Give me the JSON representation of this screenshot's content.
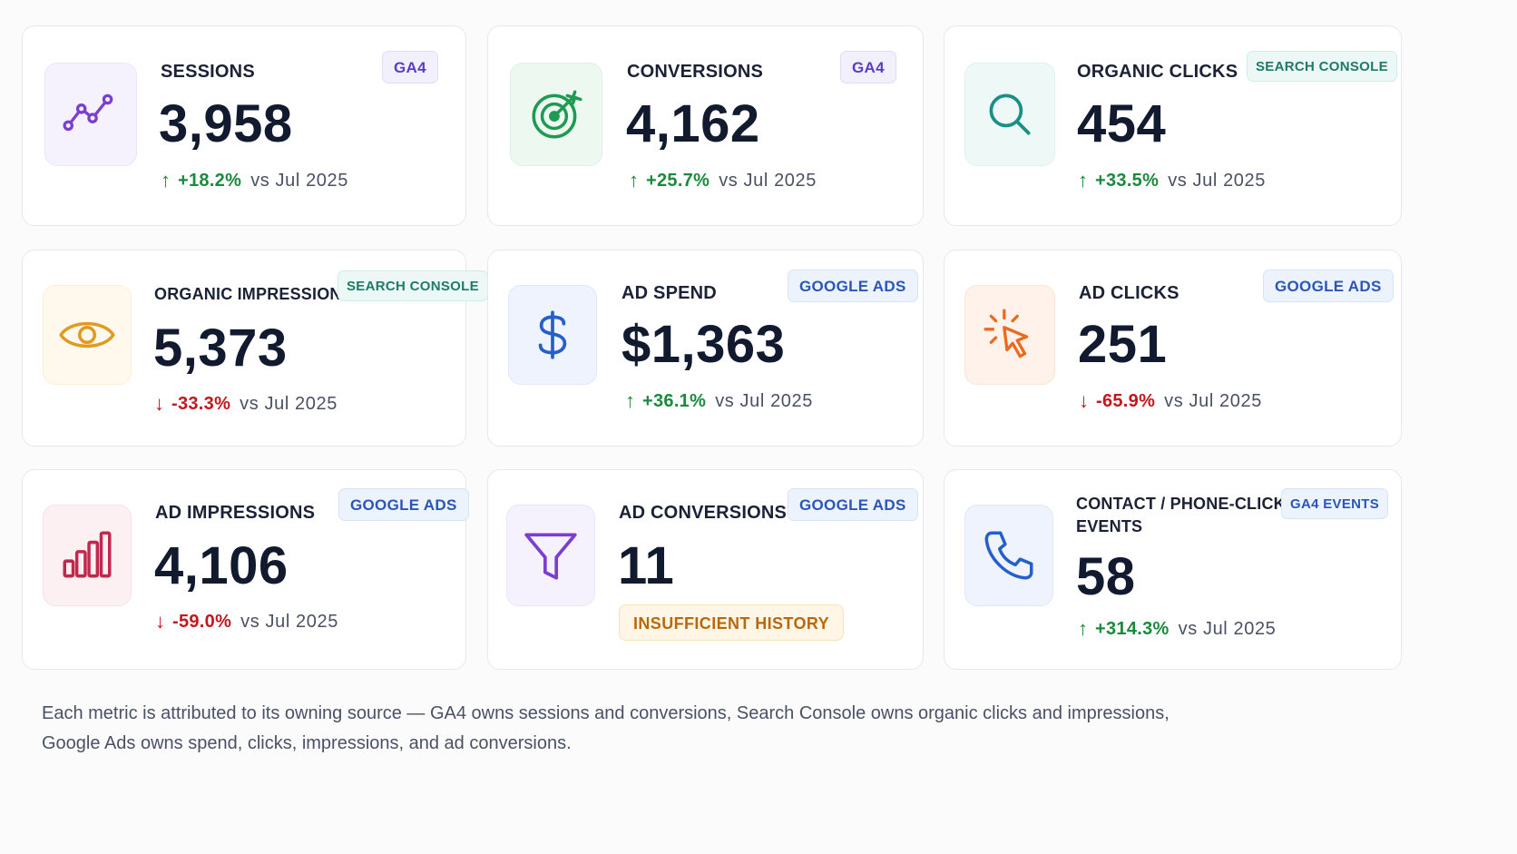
{
  "colors": {
    "up": "#1a8a3c",
    "down": "#c4161c",
    "ga4_badge": "#5b3cc4",
    "search_console_badge": "#1f7a6a",
    "google_ads_badge": "#2b55b8"
  },
  "cards": [
    {
      "label": "SESSIONS",
      "source": "GA4",
      "value": "3,958",
      "icon": "trend-line-icon",
      "arrow": "↑",
      "change": "+18.2%",
      "compare": "vs  Jul  2025"
    },
    {
      "label": "CONVERSIONS",
      "source": "GA4",
      "value": "4,162",
      "icon": "target-icon",
      "arrow": "↑",
      "change": "+25.7%",
      "compare": "vs  Jul  2025"
    },
    {
      "label": "ORGANIC CLICKS",
      "source": "SEARCH CONSOLE",
      "value": "454",
      "icon": "search-icon",
      "arrow": "↑",
      "change": "+33.5%",
      "compare": "vs  Jul  2025"
    },
    {
      "label": "ORGANIC IMPRESSIONS",
      "source": "SEARCH CONSOLE",
      "value": "5,373",
      "icon": "eye-icon",
      "arrow": "↓",
      "change": "-33.3%",
      "compare": "vs  Jul  2025"
    },
    {
      "label": "AD SPEND",
      "source": "GOOGLE ADS",
      "value": "$1,363",
      "icon": "dollar-icon",
      "arrow": "↑",
      "change": "+36.1%",
      "compare": "vs  Jul  2025"
    },
    {
      "label": "AD CLICKS",
      "source": "GOOGLE ADS",
      "value": "251",
      "icon": "cursor-click-icon",
      "arrow": "↓",
      "change": "-65.9%",
      "compare": "vs  Jul  2025"
    },
    {
      "label": "AD IMPRESSIONS",
      "source": "GOOGLE ADS",
      "value": "4,106",
      "icon": "bar-chart-icon",
      "arrow": "↓",
      "change": "-59.0%",
      "compare": "vs  Jul  2025"
    },
    {
      "label": "AD CONVERSIONS",
      "source": "GOOGLE ADS",
      "value": "11",
      "icon": "funnel-icon",
      "status": "INSUFFICIENT HISTORY"
    },
    {
      "label_line1": "CONTACT / PHONE-CLICK",
      "label_line2": "EVENTS",
      "source": "GA4 EVENTS",
      "value": "58",
      "icon": "phone-icon",
      "arrow": "↑",
      "change": "+314.3%",
      "compare": "vs  Jul  2025"
    }
  ],
  "footnote": {
    "line1": "Each metric is attributed to its owning source — GA4 owns sessions and conversions, Search Console owns organic clicks and impressions,",
    "line2": "Google Ads owns spend, clicks, impressions, and ad conversions."
  }
}
